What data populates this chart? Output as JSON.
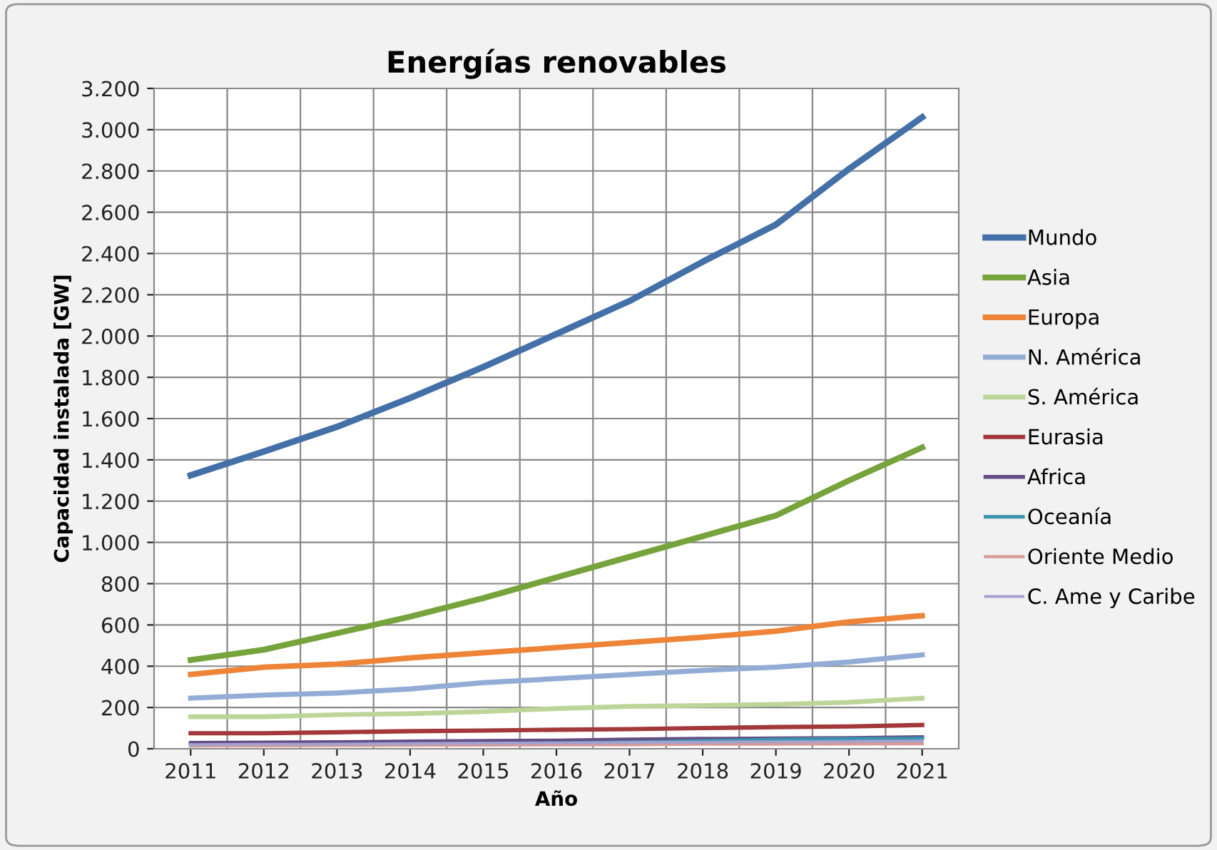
{
  "chart_data": {
    "type": "line",
    "title": "Energías renovables",
    "xlabel": "Año",
    "ylabel": "Capacidad instalada [GW]",
    "categories": [
      "2011",
      "2012",
      "2013",
      "2014",
      "2015",
      "2016",
      "2017",
      "2018",
      "2019",
      "2020",
      "2021"
    ],
    "series": [
      {
        "name": "Mundo",
        "color": "#4470a8",
        "values": [
          1325,
          1440,
          1560,
          1700,
          1850,
          2010,
          2170,
          2360,
          2540,
          2810,
          3060
        ]
      },
      {
        "name": "Asia",
        "color": "#77a33c",
        "values": [
          430,
          480,
          560,
          640,
          730,
          830,
          930,
          1030,
          1130,
          1300,
          1460
        ]
      },
      {
        "name": "Europa",
        "color": "#ee8438",
        "values": [
          360,
          395,
          410,
          440,
          465,
          490,
          515,
          540,
          570,
          615,
          645
        ]
      },
      {
        "name": "N. América",
        "color": "#93acd6",
        "values": [
          245,
          260,
          270,
          290,
          320,
          340,
          360,
          380,
          395,
          420,
          455
        ]
      },
      {
        "name": "S. América",
        "color": "#bdd598",
        "values": [
          155,
          155,
          165,
          170,
          180,
          195,
          205,
          210,
          215,
          225,
          245
        ]
      },
      {
        "name": "Eurasia",
        "color": "#a3383a",
        "values": [
          75,
          75,
          80,
          85,
          88,
          92,
          95,
          100,
          105,
          108,
          115
        ]
      },
      {
        "name": "Africa",
        "color": "#654c85",
        "values": [
          28,
          30,
          32,
          35,
          38,
          40,
          45,
          48,
          50,
          52,
          56
        ]
      },
      {
        "name": "Oceanía",
        "color": "#3b93ad",
        "values": [
          15,
          17,
          20,
          22,
          25,
          28,
          32,
          38,
          45,
          48,
          50
        ]
      },
      {
        "name": "Oriente Medio",
        "color": "#d69a98",
        "values": [
          15,
          15,
          16,
          17,
          18,
          19,
          20,
          22,
          22,
          23,
          24
        ]
      },
      {
        "name": "C. Ame y Caribe",
        "color": "#a3a1cf",
        "values": [
          20,
          22,
          23,
          25,
          27,
          28,
          30,
          32,
          34,
          36,
          38
        ]
      }
    ],
    "ylim": [
      0,
      3200
    ],
    "yticks": [
      0,
      200,
      400,
      600,
      800,
      {
        "value": 1000,
        "label": "1.000"
      },
      {
        "value": 1200,
        "label": "1.200"
      },
      {
        "value": 1400,
        "label": "1.400"
      },
      {
        "value": 1600,
        "label": "1.600"
      },
      {
        "value": 1800,
        "label": "1.800"
      },
      {
        "value": 2000,
        "label": "2.000"
      },
      {
        "value": 2200,
        "label": "2.200"
      },
      {
        "value": 2400,
        "label": "2.400"
      },
      {
        "value": 2600,
        "label": "2.600"
      },
      {
        "value": 2800,
        "label": "2.800"
      },
      {
        "value": 3000,
        "label": "3.000"
      },
      {
        "value": 3200,
        "label": "3.200"
      }
    ],
    "grid": true,
    "legend": "right",
    "marker": "none",
    "line_style": "solid"
  }
}
